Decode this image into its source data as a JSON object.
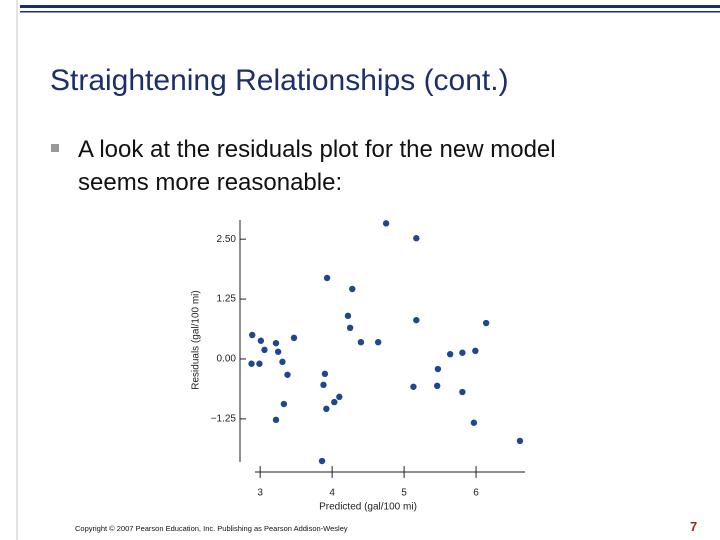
{
  "slide": {
    "title": "Straightening Relationships (cont.)",
    "bullet": [
      "A look at the residuals plot for the new model",
      "seems more reasonable:"
    ],
    "footer": "Copyright © 2007 Pearson Education, Inc. Publishing as Pearson Addison-Wesley",
    "page_number": "7"
  },
  "chart_data": {
    "type": "scatter",
    "x_label": "Predicted (gal/100 mi)",
    "y_label": "Residuals (gal/100 mi)",
    "color": "#1f4690",
    "x": [
      2.88,
      2.89,
      2.99,
      3.01,
      3.06,
      3.22,
      3.25,
      3.22,
      3.31,
      3.38,
      3.33,
      3.47,
      3.86,
      3.88,
      3.9,
      3.92,
      3.93,
      4.03,
      4.1,
      4.22,
      4.25,
      4.28,
      4.4,
      4.64,
      4.75,
      5.13,
      5.17,
      5.17,
      5.46,
      5.47,
      5.64,
      5.81,
      5.99,
      5.81,
      5.97,
      6.14,
      6.61
    ],
    "values": [
      -0.1,
      0.5,
      -0.1,
      0.38,
      0.19,
      0.33,
      0.15,
      -1.27,
      -0.06,
      -0.33,
      -0.94,
      0.44,
      -2.13,
      -0.54,
      -0.31,
      -1.04,
      1.69,
      -0.9,
      -0.79,
      0.9,
      0.65,
      1.46,
      0.35,
      0.35,
      2.83,
      -0.58,
      2.52,
      0.81,
      -0.56,
      -0.21,
      0.1,
      0.13,
      0.17,
      -0.69,
      -1.33,
      0.75,
      -1.71
    ],
    "xlim": [
      2.72,
      6.68
    ],
    "ylim": [
      -2.15,
      2.9
    ],
    "xticks": [
      3,
      4,
      5,
      6
    ],
    "yticks": [
      {
        "value": 2.5,
        "label": "2.50"
      },
      {
        "value": 1.25,
        "label": "1.25"
      },
      {
        "value": 0,
        "label": "0.00"
      },
      {
        "value": -1.25,
        "label": "−1.25"
      }
    ]
  }
}
